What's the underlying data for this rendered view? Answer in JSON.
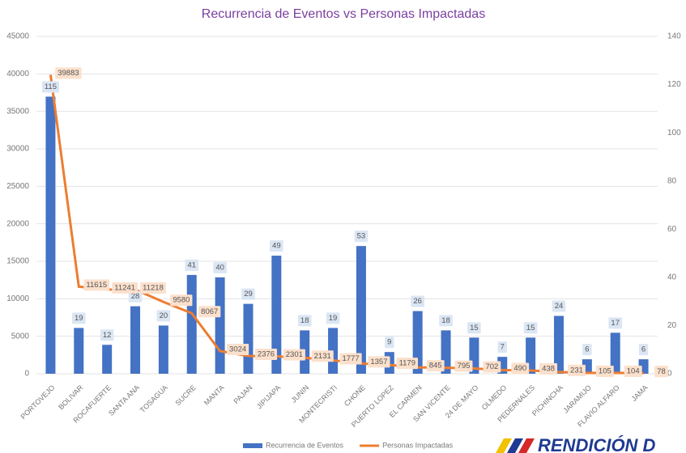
{
  "chart_data": {
    "type": "combo",
    "title": "Recurrencia de Eventos vs Personas Impactadas",
    "categories": [
      "PORTOVEJO",
      "BOLIVAR",
      "ROCAFUERTE",
      "SANTA ANA",
      "TOSAGUA",
      "SUCRE",
      "MANTA",
      "PAJAN",
      "JIPIJAPA",
      "JUNIN",
      "MONTECRISTI",
      "CHONE",
      "PUERTO LOPEZ",
      "EL CARMEN",
      "SAN VICENTE",
      "24 DE MAYO",
      "OLMEDO",
      "PEDERNALES",
      "PICHINCHA",
      "JARAMIJO",
      "FLAVIO ALFARO",
      "JAMA"
    ],
    "series": [
      {
        "name": "Recurrencia de Eventos",
        "type": "bar",
        "axis": "y2",
        "color": "#4472c4",
        "values": [
          115,
          19,
          12,
          28,
          20,
          41,
          40,
          29,
          49,
          18,
          19,
          53,
          9,
          26,
          18,
          15,
          7,
          15,
          24,
          6,
          17,
          6
        ]
      },
      {
        "name": "Personas Impactadas",
        "type": "line",
        "axis": "y",
        "color": "#ed7d31",
        "values": [
          39883,
          11615,
          11241,
          11218,
          9580,
          8067,
          3024,
          2376,
          2301,
          2131,
          1777,
          1357,
          1179,
          845,
          795,
          702,
          490,
          438,
          231,
          105,
          104,
          78
        ]
      }
    ],
    "ylim": [
      0,
      45000
    ],
    "yticks": [
      0,
      5000,
      10000,
      15000,
      20000,
      25000,
      30000,
      35000,
      40000,
      45000
    ],
    "y2lim": [
      0,
      140
    ],
    "y2ticks": [
      0,
      20,
      40,
      60,
      80,
      100,
      120,
      140
    ],
    "grid": true,
    "legend": "bottom",
    "logo_text": "RENDICIÓN D"
  }
}
